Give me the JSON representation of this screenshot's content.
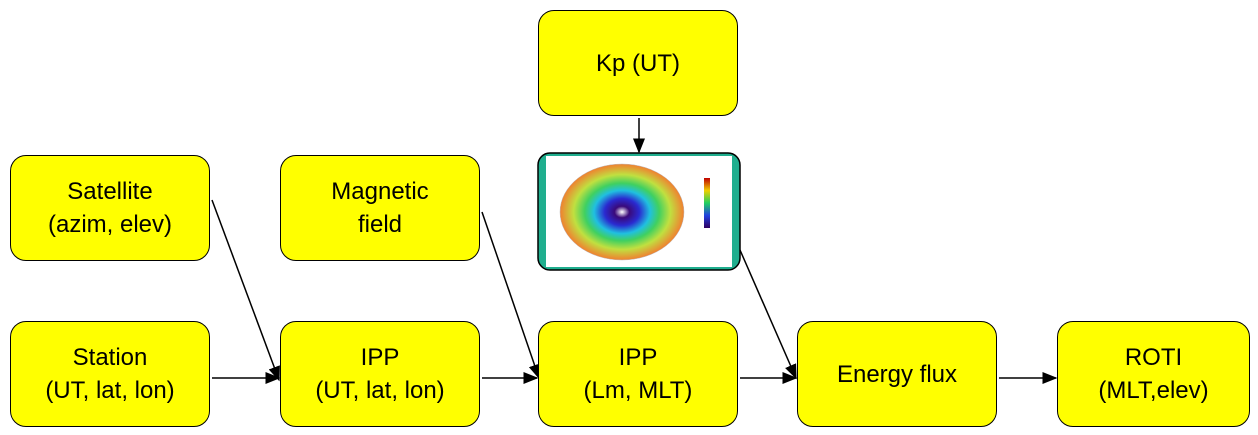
{
  "nodes": [
    {
      "lines": [
        "Kp (UT)"
      ]
    },
    {
      "lines": [
        "Satellite",
        "(azim, elev)"
      ]
    },
    {
      "lines": [
        "Magnetic",
        "field"
      ]
    },
    {
      "lines": [
        "Station",
        "(UT, lat, lon)"
      ]
    },
    {
      "lines": [
        "IPP",
        "(UT, lat, lon)"
      ]
    },
    {
      "lines": [
        "IPP",
        "(Lm, MLT)"
      ]
    },
    {
      "lines": [
        "Energy flux"
      ]
    },
    {
      "lines": [
        "ROTI",
        "(MLT,elev)"
      ]
    }
  ]
}
